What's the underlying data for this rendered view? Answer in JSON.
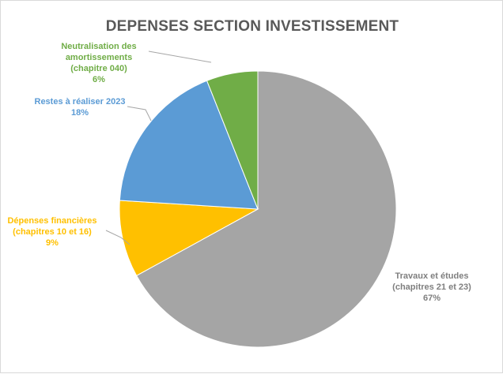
{
  "chart_data": {
    "type": "pie",
    "title": "DEPENSES SECTION INVESTISSEMENT",
    "slices": [
      {
        "name": "Travaux et études (chapitres 21 et 23)",
        "label_lines": [
          "Travaux et études",
          "(chapitres 21 et 23)",
          "67%"
        ],
        "value": 67,
        "color": "#a5a5a5",
        "label_color": "#7f7f7f"
      },
      {
        "name": "Dépenses financières (chapitres 10 et 16)",
        "label_lines": [
          "Dépenses financières",
          "(chapitres 10 et 16)",
          "9%"
        ],
        "value": 9,
        "color": "#ffc000",
        "label_color": "#ffc000"
      },
      {
        "name": "Restes à réaliser 2023",
        "label_lines": [
          "Restes à réaliser 2023",
          "18%"
        ],
        "value": 18,
        "color": "#5b9bd5",
        "label_color": "#5b9bd5"
      },
      {
        "name": "Neutralisation des amortissements (chapitre 040)",
        "label_lines": [
          "Neutralisation des",
          "amortissements",
          "(chapitre 040)",
          "6%"
        ],
        "value": 6,
        "color": "#70ad47",
        "label_color": "#70ad47"
      }
    ],
    "legend": "none",
    "start_angle": "12 o'clock",
    "direction": "clockwise"
  }
}
